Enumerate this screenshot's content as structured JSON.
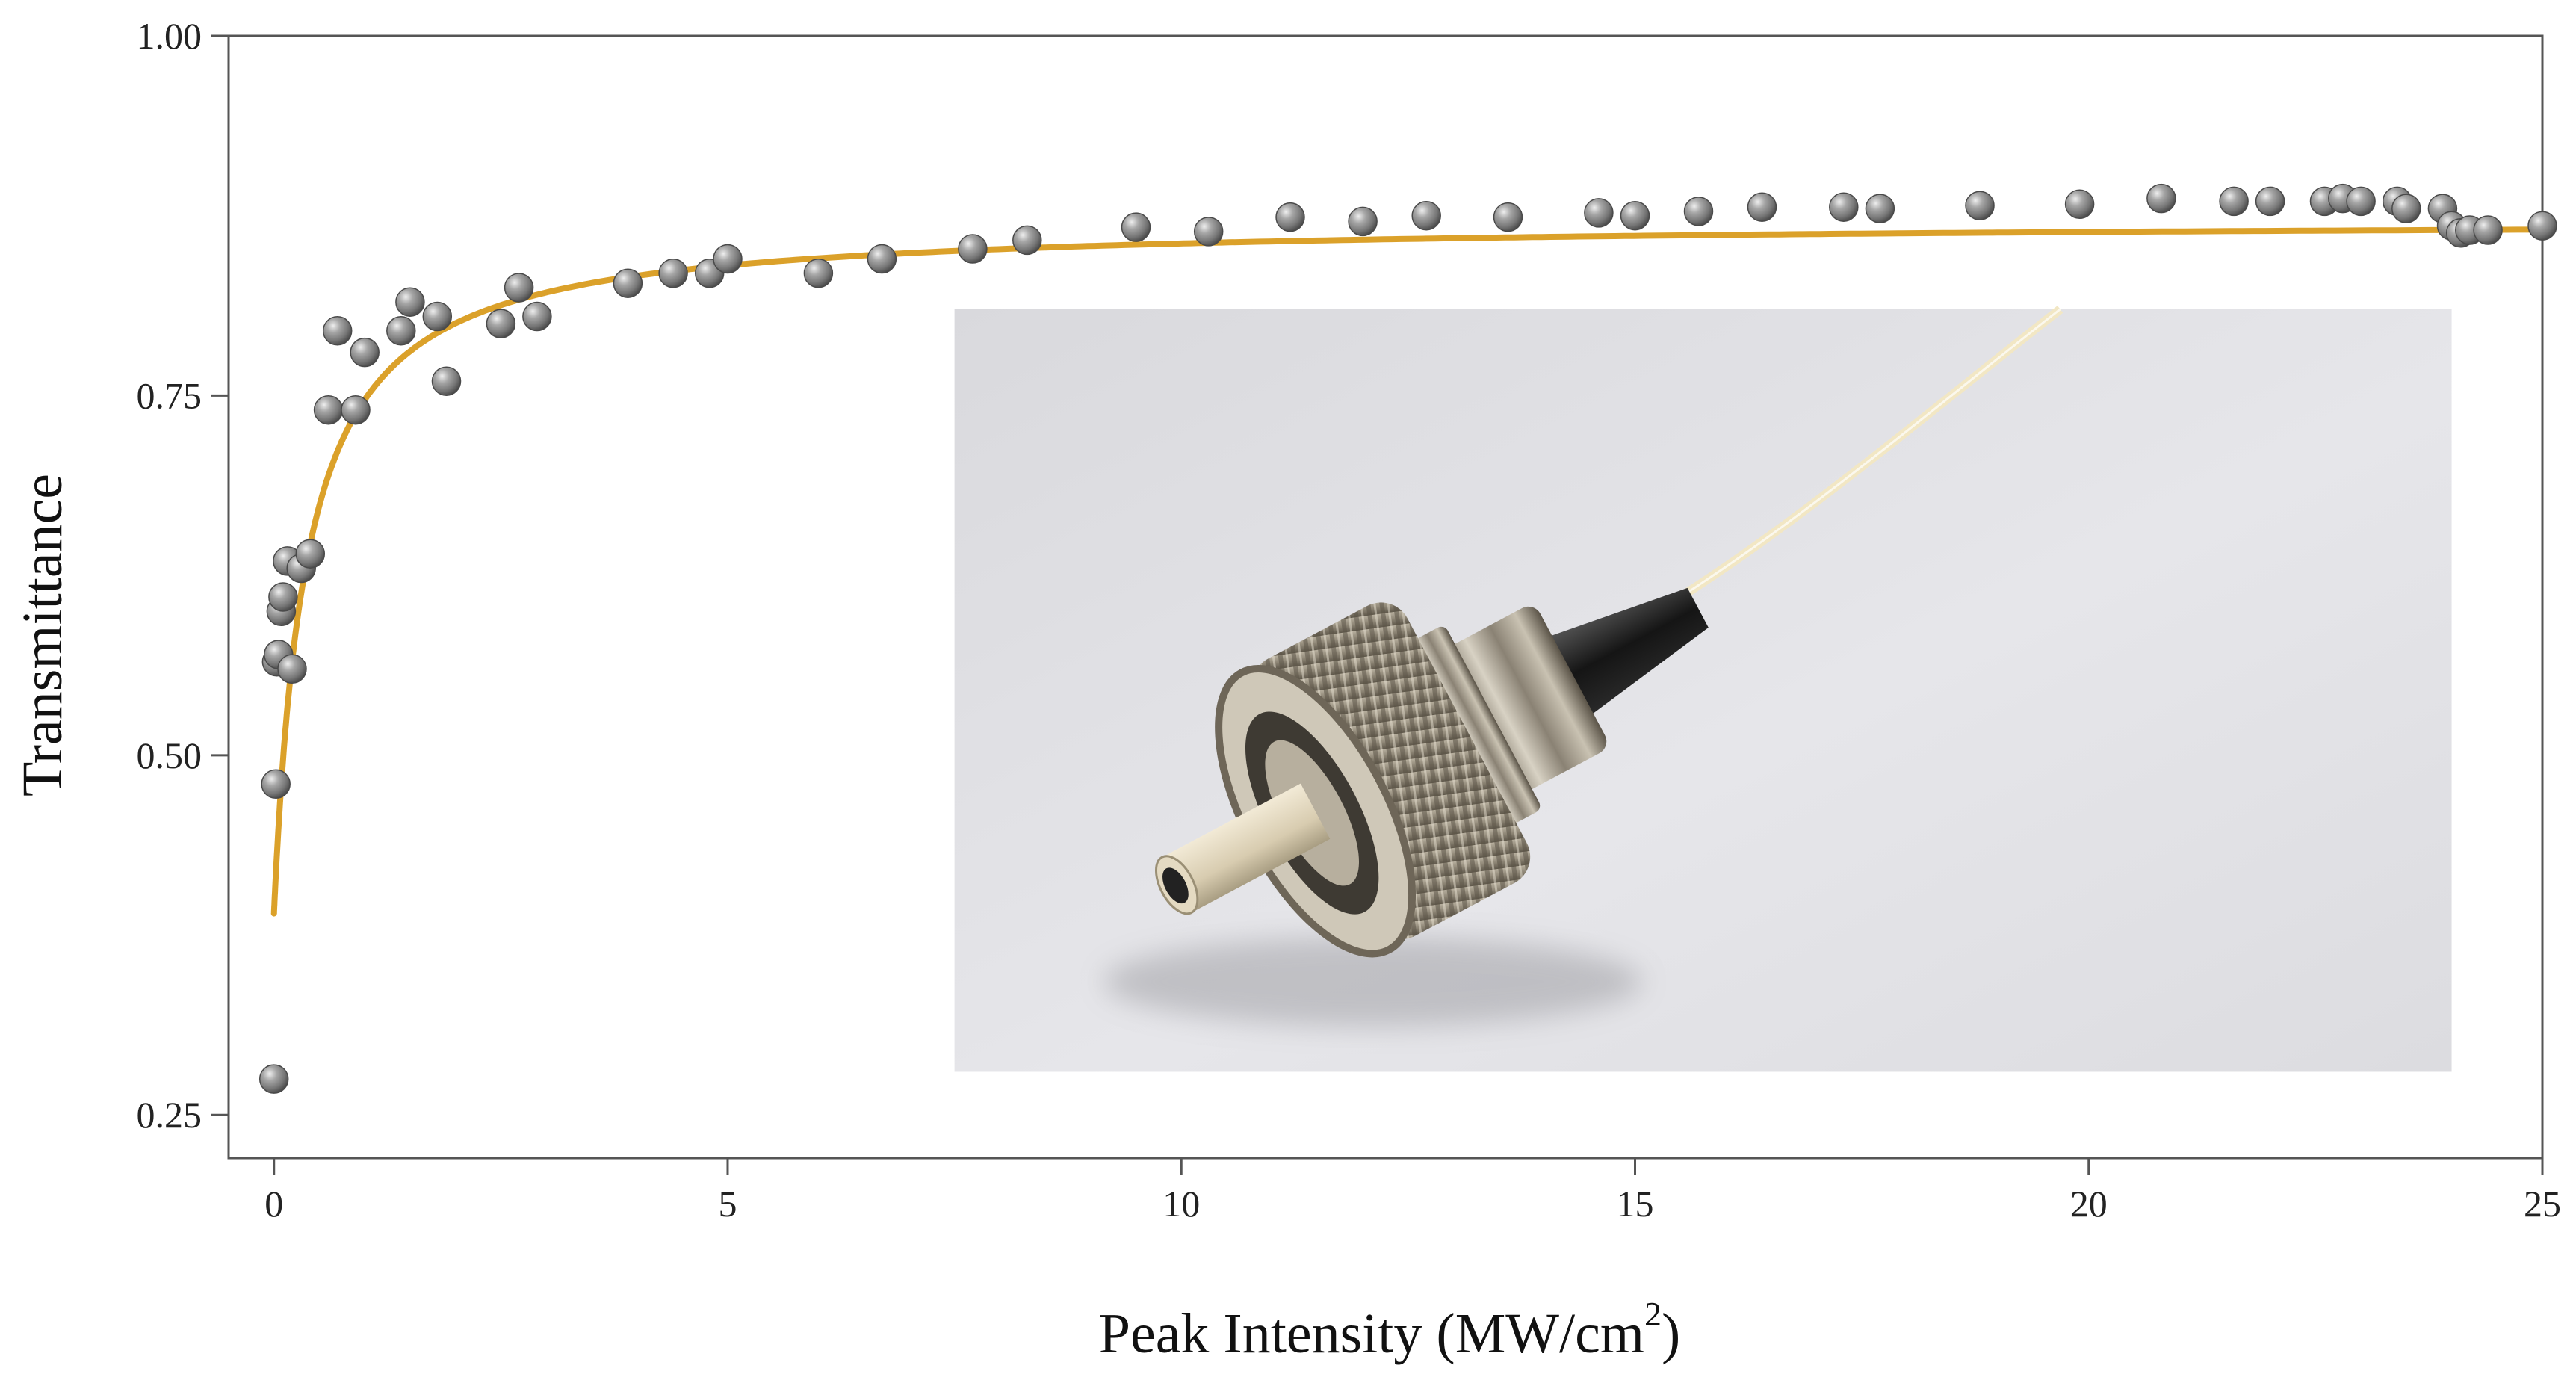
{
  "chart_data": {
    "type": "scatter",
    "xlabel": "Peak Intensity (MW/cm",
    "xlabel_superscript": "2",
    "xlabel_close": ")",
    "ylabel": "Transmittance",
    "xlim": [
      -0.5,
      25
    ],
    "ylim": [
      0.22,
      1.0
    ],
    "x_ticks": [
      0,
      5,
      10,
      15,
      20,
      25
    ],
    "x_tick_labels": [
      "0",
      "5",
      "10",
      "15",
      "20",
      "25"
    ],
    "y_ticks": [
      0.25,
      0.5,
      0.75,
      1.0
    ],
    "y_tick_labels": [
      "0.25",
      "0.50",
      "0.75",
      "1.00"
    ],
    "grid": false,
    "colors": {
      "fit_line": "#dba12a",
      "marker": "#8a8a8a",
      "marker_highlight": "#e6e6e6",
      "marker_shadow": "#4a4a4a",
      "axis": "#555555"
    },
    "series": [
      {
        "kind": "scatter",
        "x": [
          0.0,
          0.02,
          0.03,
          0.05,
          0.08,
          0.1,
          0.15,
          0.2,
          0.3,
          0.4,
          0.6,
          0.7,
          0.9,
          1.0,
          1.4,
          1.5,
          1.8,
          1.9,
          2.5,
          2.7,
          2.9,
          3.9,
          4.4,
          4.8,
          5.0,
          6.0,
          6.7,
          7.7,
          8.3,
          9.5,
          10.3,
          11.2,
          12.0,
          12.7,
          13.6,
          14.6,
          15.0,
          15.7,
          16.4,
          17.3,
          17.7,
          18.8,
          19.9,
          20.8,
          21.6,
          22.0,
          22.6,
          22.8,
          23.0,
          23.4,
          23.5,
          23.9,
          24.0,
          24.1,
          24.2,
          24.4,
          25.0
        ],
        "y": [
          0.275,
          0.48,
          0.565,
          0.57,
          0.6,
          0.61,
          0.635,
          0.56,
          0.63,
          0.64,
          0.74,
          0.795,
          0.74,
          0.78,
          0.795,
          0.815,
          0.805,
          0.76,
          0.8,
          0.825,
          0.805,
          0.828,
          0.835,
          0.835,
          0.845,
          0.835,
          0.845,
          0.852,
          0.858,
          0.867,
          0.864,
          0.874,
          0.871,
          0.875,
          0.874,
          0.877,
          0.875,
          0.878,
          0.881,
          0.881,
          0.88,
          0.882,
          0.883,
          0.887,
          0.885,
          0.885,
          0.885,
          0.887,
          0.885,
          0.885,
          0.88,
          0.88,
          0.868,
          0.863,
          0.865,
          0.865,
          0.868
        ]
      },
      {
        "kind": "line",
        "Tl": 0.39,
        "Tns": 0.872,
        "Isat": 0.35,
        "x_start": 0.0,
        "x_end": 25.0
      }
    ],
    "inset": {
      "kind": "photo",
      "subject": "fiber optic connector",
      "x_range": [
        7.5,
        24.0
      ],
      "y_range": [
        0.28,
        0.81
      ]
    }
  }
}
